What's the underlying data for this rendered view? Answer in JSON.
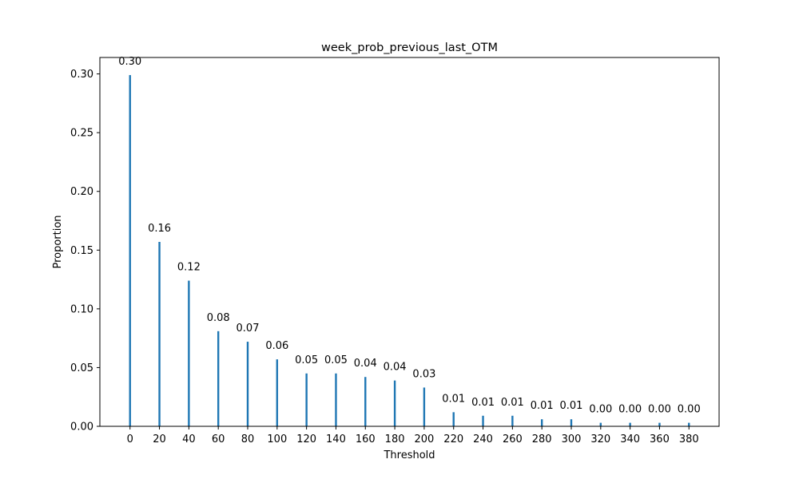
{
  "chart_data": {
    "type": "bar",
    "title": "week_prob_previous_last_OTM",
    "xlabel": "Threshold",
    "ylabel": "Proportion",
    "x": [
      0,
      20,
      40,
      60,
      80,
      100,
      120,
      140,
      160,
      180,
      200,
      220,
      240,
      260,
      280,
      300,
      320,
      340,
      360,
      380
    ],
    "values": [
      0.299,
      0.157,
      0.124,
      0.081,
      0.072,
      0.057,
      0.045,
      0.045,
      0.042,
      0.039,
      0.033,
      0.012,
      0.009,
      0.009,
      0.006,
      0.006,
      0.003,
      0.003,
      0.003,
      0.003
    ],
    "data_labels": [
      "0.30",
      "0.16",
      "0.12",
      "0.08",
      "0.07",
      "0.06",
      "0.05",
      "0.05",
      "0.04",
      "0.04",
      "0.03",
      "0.01",
      "0.01",
      "0.01",
      "0.01",
      "0.01",
      "0.00",
      "0.00",
      "0.00",
      "0.00"
    ],
    "x_ticks": [
      0,
      20,
      40,
      60,
      80,
      100,
      120,
      140,
      160,
      180,
      200,
      220,
      240,
      260,
      280,
      300,
      320,
      340,
      360,
      380
    ],
    "y_ticks": [
      "0.00",
      "0.05",
      "0.10",
      "0.15",
      "0.20",
      "0.25",
      "0.30"
    ],
    "xlim": [
      -20.5,
      400.5
    ],
    "ylim": [
      0,
      0.314
    ],
    "grid": false,
    "bar_color": "#1f77b4"
  }
}
